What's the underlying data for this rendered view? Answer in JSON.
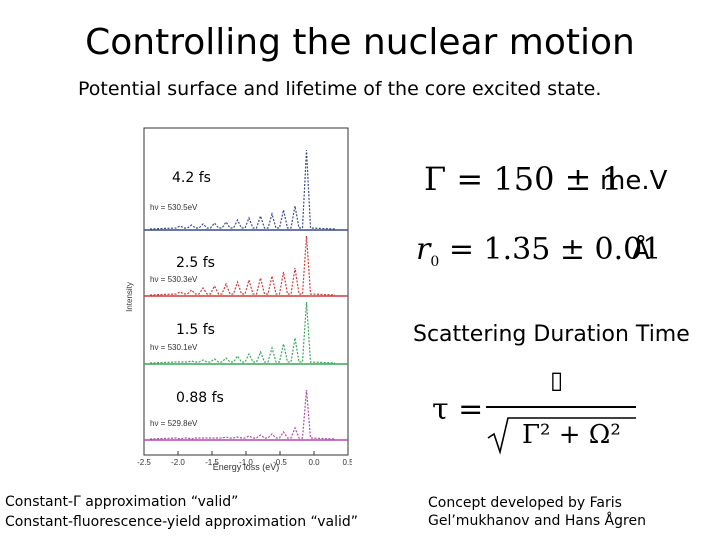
{
  "title": "Controlling the nuclear motion",
  "subtitle": "Potential surface  and lifetime  of the core excited state.",
  "plot": {
    "traces": [
      {
        "hv_label": "hν = 530.5eV",
        "duration": "4.2 fs",
        "color": "#3a4a8a"
      },
      {
        "hv_label": "hν = 530.3eV",
        "duration": "2.5 fs",
        "color": "#d03a3a"
      },
      {
        "hv_label": "hν = 530.1eV",
        "duration": "1.5 fs",
        "color": "#3aa55a"
      },
      {
        "hv_label": "hν = 529.8eV",
        "duration": "0.88 fs",
        "color": "#b04aa8"
      }
    ],
    "ylabel": "Intensity",
    "xlabel": "Energy loss (eV)",
    "xticks": [
      "-2.5",
      "-2.0",
      "-1.5",
      "-1.0",
      "-0.5",
      "0.0",
      "0.5"
    ]
  },
  "right": {
    "gamma_lhs": "Γ",
    "gamma_rhs": "= 150 ± 1",
    "gamma_unit": "me.V",
    "r0_lhs": "r",
    "r0_sub": "0",
    "r0_rhs": "= 1.35 ± 0.01",
    "r0_unit": "Å",
    "scattering_label": "Scattering Duration Time",
    "tau_lhs": "τ =",
    "tau_numerator": "▯",
    "tau_denominator": "Γ² + Ω²"
  },
  "footer_left": {
    "line1": "Constant-Γ approximation “valid”",
    "line2": "Constant-fluorescence-yield approximation “valid”"
  },
  "footer_right": {
    "line1": "Concept developed by Faris",
    "line2": "Gel’mukhanov and Hans Ågren"
  }
}
